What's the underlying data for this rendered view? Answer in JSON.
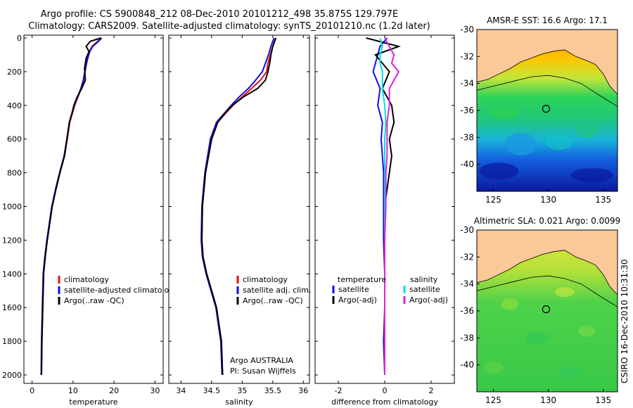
{
  "header": {
    "line1": "Argo profile: CS 5900848_212 08-Dec-2010 20101212_498 35.875S 129.797E",
    "line2": "Climatology: CARS2009. Satellite-adjusted climatology: synTS_20101210.nc (1.2d later)"
  },
  "credit": "CSIRO 16-Dec-2010 10:31:30",
  "colors": {
    "black": "#000000",
    "red": "#e01010",
    "blue": "#1010e0",
    "cyan": "#00e0e0",
    "magenta": "#e020e0",
    "land": "#fbc89a"
  },
  "chart_data": [
    {
      "type": "line",
      "xlabel": "temperature",
      "ylabel": "",
      "xlim": [
        -2,
        32
      ],
      "ylim": [
        2050,
        0
      ],
      "xticks": [
        0,
        10,
        20,
        30
      ],
      "yticks": [
        0,
        200,
        400,
        600,
        800,
        1000,
        1200,
        1400,
        1600,
        1800,
        2000
      ],
      "legend": [
        "climatology",
        "satellite-adjusted climatology",
        "Argo(..raw -QC)"
      ],
      "series": [
        {
          "name": "climatology",
          "color": "red",
          "x": [
            16.9,
            16.0,
            14.6,
            14.0,
            13.5,
            13.1,
            12.6,
            12.0,
            11.2,
            10.4,
            9.8,
            9.2,
            8.6,
            7.9,
            6.8,
            5.8,
            4.9,
            4.3,
            3.7,
            3.2,
            2.8,
            2.6,
            2.4,
            2.3
          ],
          "y": [
            0,
            20,
            50,
            80,
            120,
            180,
            250,
            300,
            350,
            400,
            450,
            500,
            600,
            700,
            800,
            900,
            1000,
            1100,
            1200,
            1300,
            1400,
            1600,
            1800,
            2000
          ]
        },
        {
          "name": "satellite-adjusted climatology",
          "color": "blue",
          "x": [
            17.0,
            16.2,
            14.8,
            14.1,
            13.6,
            13.0,
            12.5,
            11.9,
            11.1,
            10.3,
            9.7,
            9.1,
            8.5,
            7.8,
            6.7,
            5.7,
            4.8,
            4.2,
            3.6,
            3.1,
            2.7,
            2.5,
            2.3,
            2.2
          ],
          "y": [
            0,
            20,
            50,
            80,
            120,
            180,
            250,
            300,
            350,
            400,
            450,
            500,
            600,
            700,
            800,
            900,
            1000,
            1100,
            1200,
            1300,
            1400,
            1600,
            1800,
            2000
          ]
        },
        {
          "name": "Argo(..raw -QC)",
          "color": "black",
          "x": [
            16.8,
            14.2,
            13.2,
            13.9,
            13.2,
            12.8,
            13.0,
            12.1,
            11.0,
            10.2,
            9.7,
            9.1,
            8.5,
            7.9,
            6.8,
            5.8,
            4.9,
            4.3,
            3.7,
            3.2,
            2.8,
            2.6,
            2.4,
            2.3
          ],
          "y": [
            0,
            20,
            50,
            80,
            120,
            180,
            250,
            300,
            350,
            400,
            450,
            500,
            600,
            700,
            800,
            900,
            1000,
            1100,
            1200,
            1300,
            1400,
            1600,
            1800,
            2000
          ]
        }
      ]
    },
    {
      "type": "line",
      "xlabel": "salinity",
      "ylabel": "",
      "xlim": [
        33.8,
        36.1
      ],
      "ylim": [
        2050,
        0
      ],
      "xticks": [
        34,
        34.5,
        35,
        35.5,
        36
      ],
      "xtick_labels": [
        "34",
        "34.5",
        "35",
        "35.5",
        "36"
      ],
      "legend": [
        "climatology",
        "satellite adj. clim.",
        "Argo(..raw -QC)"
      ],
      "annotation": [
        "Argo AUSTRALIA",
        "PI: Susan Wijffels"
      ],
      "series": [
        {
          "name": "climatology",
          "color": "red",
          "x": [
            35.55,
            35.5,
            35.46,
            35.42,
            35.4,
            35.3,
            35.15,
            35.0,
            34.85,
            34.72,
            34.6,
            34.5,
            34.4,
            34.35,
            34.34,
            34.36,
            34.42,
            34.5,
            34.58,
            34.62,
            34.66,
            34.68
          ],
          "y": [
            0,
            50,
            100,
            150,
            200,
            250,
            300,
            350,
            400,
            450,
            500,
            600,
            800,
            1000,
            1200,
            1300,
            1400,
            1500,
            1600,
            1700,
            1800,
            2000
          ]
        },
        {
          "name": "satellite adj. clim.",
          "color": "blue",
          "x": [
            35.52,
            35.47,
            35.43,
            35.38,
            35.33,
            35.22,
            35.1,
            34.95,
            34.82,
            34.7,
            34.58,
            34.48,
            34.39,
            34.34,
            34.33,
            34.35,
            34.41,
            34.49,
            34.57,
            34.61,
            34.65,
            34.67
          ],
          "y": [
            0,
            50,
            100,
            150,
            200,
            250,
            300,
            350,
            400,
            450,
            500,
            600,
            800,
            1000,
            1200,
            1300,
            1400,
            1500,
            1600,
            1700,
            1800,
            2000
          ]
        },
        {
          "name": "Argo(..raw -QC)",
          "color": "black",
          "x": [
            35.55,
            35.5,
            35.47,
            35.45,
            35.42,
            35.38,
            35.25,
            35.02,
            34.84,
            34.71,
            34.6,
            34.5,
            34.4,
            34.35,
            34.34,
            34.36,
            34.42,
            34.5,
            34.58,
            34.62,
            34.66,
            34.68
          ],
          "y": [
            0,
            50,
            100,
            150,
            200,
            250,
            300,
            350,
            400,
            450,
            500,
            600,
            800,
            1000,
            1200,
            1300,
            1400,
            1500,
            1600,
            1700,
            1800,
            2000
          ]
        }
      ]
    },
    {
      "type": "line",
      "xlabel": "difference from climatology",
      "ylabel": "",
      "xlim": [
        -3,
        3
      ],
      "ylim": [
        2050,
        0
      ],
      "xticks": [
        -2,
        0,
        2
      ],
      "legend": [
        {
          "group": "temperature",
          "items": [
            "satellite",
            "Argo(-adj)"
          ]
        },
        {
          "group": "salinity",
          "items": [
            "satellite",
            "Argo(-adj)"
          ]
        }
      ],
      "series": [
        {
          "name": "temperature satellite",
          "color": "blue",
          "x": [
            0.1,
            -0.2,
            -0.3,
            -0.4,
            -0.5,
            -0.2,
            -0.3,
            -0.1,
            -0.15,
            -0.1,
            -0.05,
            -0.05,
            -0.05,
            0.0,
            0.0,
            -0.05,
            0.0
          ],
          "y": [
            0,
            50,
            100,
            150,
            200,
            300,
            400,
            500,
            600,
            700,
            800,
            1000,
            1200,
            1400,
            1600,
            1800,
            2000
          ]
        },
        {
          "name": "temperature Argo(-adj)",
          "color": "black",
          "x": [
            -0.8,
            0.6,
            -0.4,
            -0.1,
            0.2,
            -0.1,
            0.3,
            0.4,
            0.2,
            0.3,
            0.2,
            0.0,
            0.0,
            0.0,
            0.0,
            0.0,
            0.0
          ],
          "y": [
            0,
            50,
            100,
            150,
            200,
            300,
            400,
            500,
            600,
            700,
            800,
            1000,
            1200,
            1400,
            1600,
            1800,
            2000
          ]
        },
        {
          "name": "salinity satellite",
          "color": "cyan",
          "x": [
            -0.2,
            -0.1,
            -0.2,
            -0.2,
            -0.1,
            -0.1,
            0.0,
            0.05,
            0.0,
            0.0,
            0.0,
            0.0,
            0.0,
            0.0,
            0.0,
            0.0,
            0.0
          ],
          "y": [
            0,
            50,
            100,
            150,
            200,
            300,
            400,
            500,
            600,
            700,
            800,
            1000,
            1200,
            1400,
            1600,
            1800,
            2000
          ]
        },
        {
          "name": "salinity Argo(-adj)",
          "color": "magenta",
          "x": [
            0.0,
            0.2,
            0.4,
            0.3,
            0.6,
            0.2,
            0.2,
            0.1,
            0.1,
            0.1,
            0.05,
            0.05,
            0.0,
            0.0,
            0.0,
            0.0,
            0.0
          ],
          "y": [
            0,
            50,
            100,
            150,
            200,
            300,
            400,
            500,
            600,
            700,
            800,
            1000,
            1200,
            1400,
            1600,
            1800,
            2000
          ]
        }
      ]
    },
    {
      "type": "heatmap",
      "title": "AMSR-E SST: 16.6 Argo: 17.1",
      "xlim": [
        123.5,
        136.3
      ],
      "ylim": [
        -42,
        -30
      ],
      "xticks": [
        125,
        130,
        135
      ],
      "yticks": [
        -30,
        -32,
        -34,
        -36,
        -38,
        -40
      ],
      "marker": {
        "lon": 129.797,
        "lat": -35.875
      }
    },
    {
      "type": "heatmap",
      "title": "Altimetric SLA: 0.021 Argo: 0.0099",
      "xlim": [
        123.5,
        136.3
      ],
      "ylim": [
        -42,
        -30
      ],
      "xticks": [
        125,
        130,
        135
      ],
      "yticks": [
        -30,
        -32,
        -34,
        -36,
        -38,
        -40
      ],
      "marker": {
        "lon": 129.797,
        "lat": -35.875
      }
    }
  ]
}
